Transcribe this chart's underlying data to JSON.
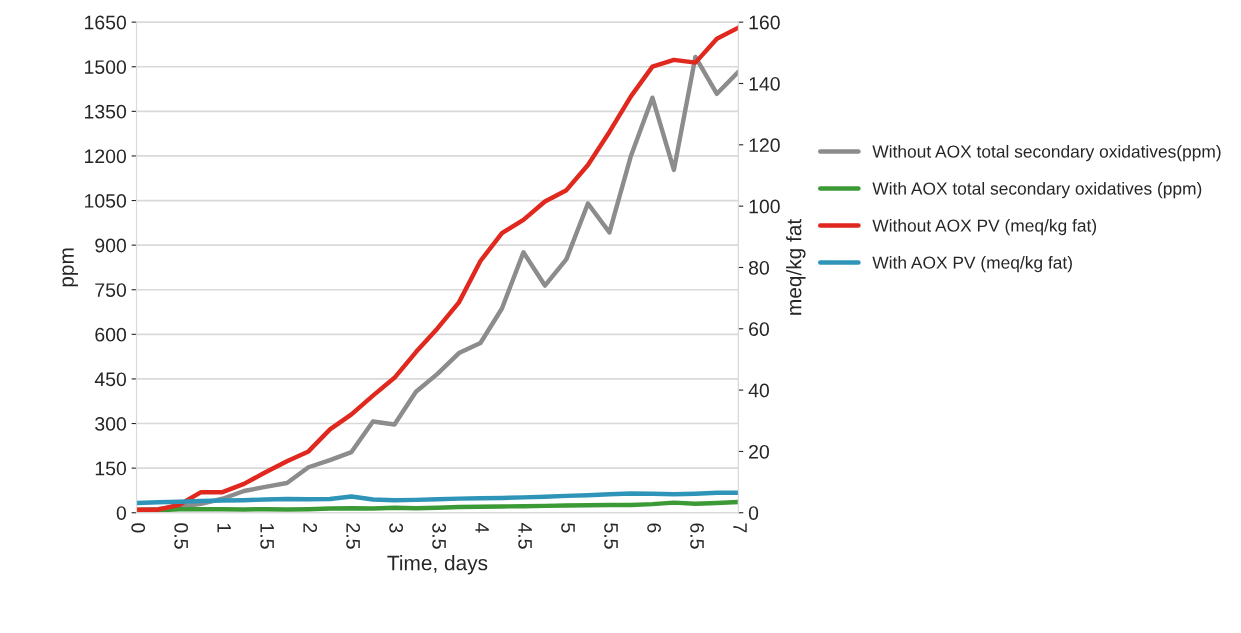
{
  "chart_data": {
    "type": "line",
    "xlabel": "Time, days",
    "ylabel": "ppm",
    "y2label": "meq/kg fat",
    "x": [
      0,
      0.25,
      0.5,
      0.75,
      1,
      1.25,
      1.5,
      1.75,
      2,
      2.25,
      2.5,
      2.75,
      3,
      3.25,
      3.5,
      3.75,
      4,
      4.25,
      4.5,
      4.75,
      5,
      5.25,
      5.5,
      5.75,
      6,
      6.25,
      6.5,
      6.75,
      7
    ],
    "xlim": [
      0,
      7
    ],
    "xticks": [
      0,
      0.5,
      1,
      1.5,
      2,
      2.5,
      3,
      3.5,
      4,
      4.5,
      5,
      5.5,
      6,
      6.5,
      7
    ],
    "ylim": [
      0,
      1650
    ],
    "yticks": [
      0,
      150,
      300,
      450,
      600,
      750,
      900,
      1050,
      1200,
      1350,
      1500,
      1650
    ],
    "y2lim": [
      0,
      160
    ],
    "y2ticks": [
      0,
      20,
      40,
      60,
      80,
      100,
      120,
      140,
      160
    ],
    "grid": "y",
    "legend": "right",
    "marker": "none",
    "line_style": "solid",
    "series": [
      {
        "name": "Without AOX total secondary oxidatives(ppm)",
        "color": "#8c8c8c",
        "values": [
          10,
          13,
          20,
          30,
          47,
          73,
          87,
          100,
          153,
          177,
          204,
          307,
          297,
          407,
          467,
          537,
          571,
          687,
          876,
          764,
          853,
          1040,
          943,
          1200,
          1396,
          1153,
          1533,
          1409,
          1483
        ]
      },
      {
        "name": "With AOX total secondary oxidatives (ppm)",
        "color": "#3c9a36",
        "values": [
          5,
          8,
          12,
          12,
          12,
          11,
          12,
          11,
          12,
          14,
          15,
          14,
          17,
          15,
          17,
          19,
          20,
          21,
          22,
          23,
          24,
          25,
          26,
          26,
          29,
          34,
          30,
          33,
          36
        ]
      },
      {
        "name": "Without AOX PV (meq/kg fat)",
        "color": "#e0281e",
        "axis": "y2",
        "values": [
          1.0,
          1.0,
          2.6,
          6.7,
          6.7,
          9.4,
          13.2,
          16.8,
          20.0,
          27.2,
          32.1,
          38.2,
          44.0,
          52.4,
          60.1,
          68.6,
          82.1,
          91.2,
          95.5,
          101.5,
          105.2,
          113.4,
          124.2,
          135.8,
          145.5,
          147.7,
          146.8,
          154.6,
          158.2
        ]
      },
      {
        "name": "With AOX PV (meq/kg fat)",
        "color": "#2e95b8",
        "axis": "y2",
        "values": [
          3.2,
          3.4,
          3.6,
          3.8,
          4.0,
          4.1,
          4.3,
          4.5,
          4.4,
          4.5,
          5.3,
          4.3,
          4.1,
          4.2,
          4.4,
          4.6,
          4.7,
          4.8,
          5.0,
          5.2,
          5.5,
          5.7,
          6.0,
          6.3,
          6.2,
          6.0,
          6.2,
          6.5,
          6.5
        ]
      }
    ]
  }
}
